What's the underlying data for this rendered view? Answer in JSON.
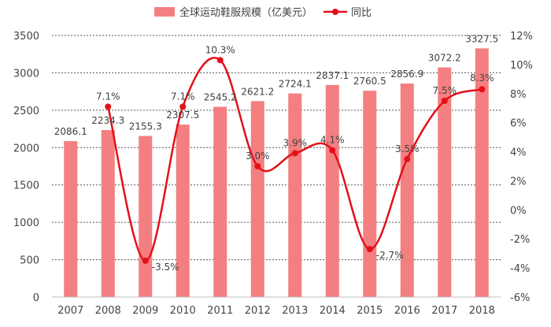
{
  "chart_data": {
    "type": "bar",
    "categories": [
      "2007",
      "2008",
      "2009",
      "2010",
      "2011",
      "2012",
      "2013",
      "2014",
      "2015",
      "2016",
      "2017",
      "2018"
    ],
    "series": [
      {
        "name": "全球运动鞋服规模（亿美元）",
        "type": "bar",
        "axis": "left",
        "values": [
          2086.1,
          2234.3,
          2155.3,
          2307.5,
          2545.2,
          2621.2,
          2724.1,
          2837.1,
          2760.5,
          2856.9,
          3072.2,
          3327.5
        ],
        "labels": [
          "2086.1",
          "2234.3",
          "2155.3",
          "2307.5",
          "2545.2",
          "2621.2",
          "2724.1",
          "2837.1",
          "2760.5",
          "2856.9",
          "3072.2",
          "3327.5"
        ]
      },
      {
        "name": "同比",
        "type": "line",
        "axis": "right",
        "smooth": true,
        "x": [
          "2008",
          "2009",
          "2010",
          "2011",
          "2012",
          "2013",
          "2014",
          "2015",
          "2016",
          "2017",
          "2018"
        ],
        "values": [
          7.1,
          -3.5,
          7.1,
          10.3,
          3.0,
          3.9,
          4.1,
          -2.7,
          3.5,
          7.5,
          8.3
        ],
        "labels": [
          "7.1%",
          "-3.5%",
          "7.1%",
          "10.3%",
          "3.0%",
          "3.9%",
          "4.1%",
          "-2.7%",
          "3.5%",
          "7.5%",
          "8.3%"
        ]
      }
    ],
    "y_left": {
      "min": 0,
      "max": 3500,
      "step": 500,
      "ticks": [
        "0",
        "500",
        "1000",
        "1500",
        "2000",
        "2500",
        "3000",
        "3500"
      ]
    },
    "y_right": {
      "min": -6,
      "max": 12,
      "step": 2,
      "ticks": [
        "-6%",
        "-4%",
        "-2%",
        "0%",
        "2%",
        "4%",
        "6%",
        "8%",
        "10%",
        "12%"
      ]
    },
    "grid": "horizontal-dashed",
    "legend_position": "top-center",
    "colors": {
      "bar": "#f47f80",
      "line": "#e3101a",
      "grid": "#555555",
      "axis": "#bfbfbf"
    }
  }
}
